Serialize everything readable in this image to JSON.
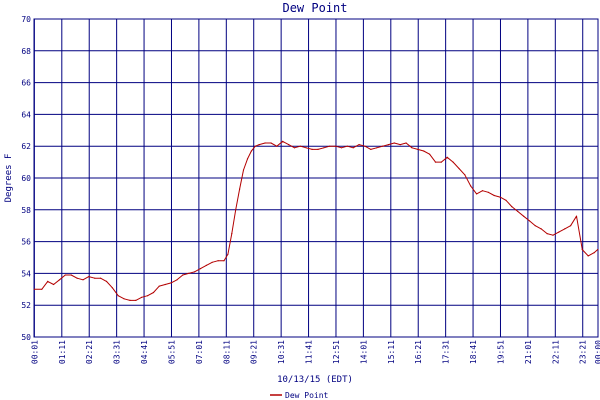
{
  "chart_data": {
    "type": "line",
    "title": "Dew Point",
    "xlabel": "10/13/15 (EDT)",
    "ylabel": "Degrees F",
    "ylim": [
      50,
      70
    ],
    "yticks": [
      50,
      52,
      54,
      56,
      58,
      60,
      62,
      64,
      66,
      68,
      70
    ],
    "xlim_minutes": [
      0,
      1440
    ],
    "xticks": [
      "00:01",
      "01:11",
      "02:21",
      "03:31",
      "04:41",
      "05:51",
      "07:01",
      "08:11",
      "09:21",
      "10:31",
      "11:41",
      "12:51",
      "14:01",
      "15:11",
      "16:21",
      "17:31",
      "18:41",
      "19:51",
      "21:01",
      "22:11",
      "23:21"
    ],
    "xticks_extra": [
      "00:00"
    ],
    "grid": true,
    "legend_position": "bottom-center",
    "colors": {
      "series": "#b30000",
      "grid": "#000080",
      "axes": "#000080",
      "text": "#000080",
      "background": "#ffffff"
    },
    "series": [
      {
        "name": "Dew Point",
        "x": [
          "00:01",
          "00:20",
          "00:35",
          "00:50",
          "01:05",
          "01:20",
          "01:35",
          "01:50",
          "02:05",
          "02:20",
          "02:35",
          "02:50",
          "03:05",
          "03:20",
          "03:35",
          "03:50",
          "04:05",
          "04:20",
          "04:35",
          "04:50",
          "05:05",
          "05:20",
          "05:35",
          "05:50",
          "06:05",
          "06:20",
          "06:35",
          "06:50",
          "07:05",
          "07:20",
          "07:35",
          "07:50",
          "08:05",
          "08:15",
          "08:25",
          "08:35",
          "08:45",
          "08:55",
          "09:05",
          "09:15",
          "09:25",
          "09:35",
          "09:50",
          "10:05",
          "10:20",
          "10:35",
          "10:50",
          "11:05",
          "11:20",
          "11:35",
          "11:50",
          "12:05",
          "12:20",
          "12:35",
          "12:50",
          "13:05",
          "13:20",
          "13:35",
          "13:50",
          "14:05",
          "14:20",
          "14:35",
          "14:50",
          "15:05",
          "15:20",
          "15:35",
          "15:50",
          "16:05",
          "16:20",
          "16:35",
          "16:50",
          "17:05",
          "17:20",
          "17:35",
          "17:50",
          "18:05",
          "18:20",
          "18:35",
          "18:50",
          "19:05",
          "19:20",
          "19:35",
          "19:50",
          "20:05",
          "20:20",
          "20:35",
          "20:50",
          "21:05",
          "21:20",
          "21:35",
          "21:50",
          "22:05",
          "22:20",
          "22:35",
          "22:50",
          "23:05",
          "23:20",
          "23:35",
          "23:50",
          "23:59"
        ],
        "values": [
          53.0,
          53.0,
          53.5,
          53.3,
          53.6,
          53.9,
          53.9,
          53.7,
          53.6,
          53.8,
          53.7,
          53.7,
          53.5,
          53.1,
          52.6,
          52.4,
          52.3,
          52.3,
          52.5,
          52.6,
          52.8,
          53.2,
          53.3,
          53.4,
          53.6,
          53.9,
          54.0,
          54.1,
          54.3,
          54.5,
          54.7,
          54.8,
          54.8,
          55.2,
          56.5,
          58.0,
          59.3,
          60.5,
          61.2,
          61.7,
          62.0,
          62.1,
          62.2,
          62.2,
          62.0,
          62.3,
          62.1,
          61.9,
          62.0,
          61.9,
          61.8,
          61.8,
          61.9,
          62.0,
          62.0,
          61.9,
          62.0,
          61.9,
          62.1,
          62.0,
          61.8,
          61.9,
          62.0,
          62.1,
          62.2,
          62.1,
          62.2,
          61.9,
          61.8,
          61.7,
          61.5,
          61.0,
          61.0,
          61.3,
          61.0,
          60.6,
          60.2,
          59.5,
          59.0,
          59.2,
          59.1,
          58.9,
          58.8,
          58.6,
          58.2,
          57.9,
          57.6,
          57.3,
          57.0,
          56.8,
          56.5,
          56.4,
          56.6,
          56.8,
          57.0,
          57.6,
          55.5,
          55.1,
          55.3,
          55.5
        ]
      }
    ]
  }
}
